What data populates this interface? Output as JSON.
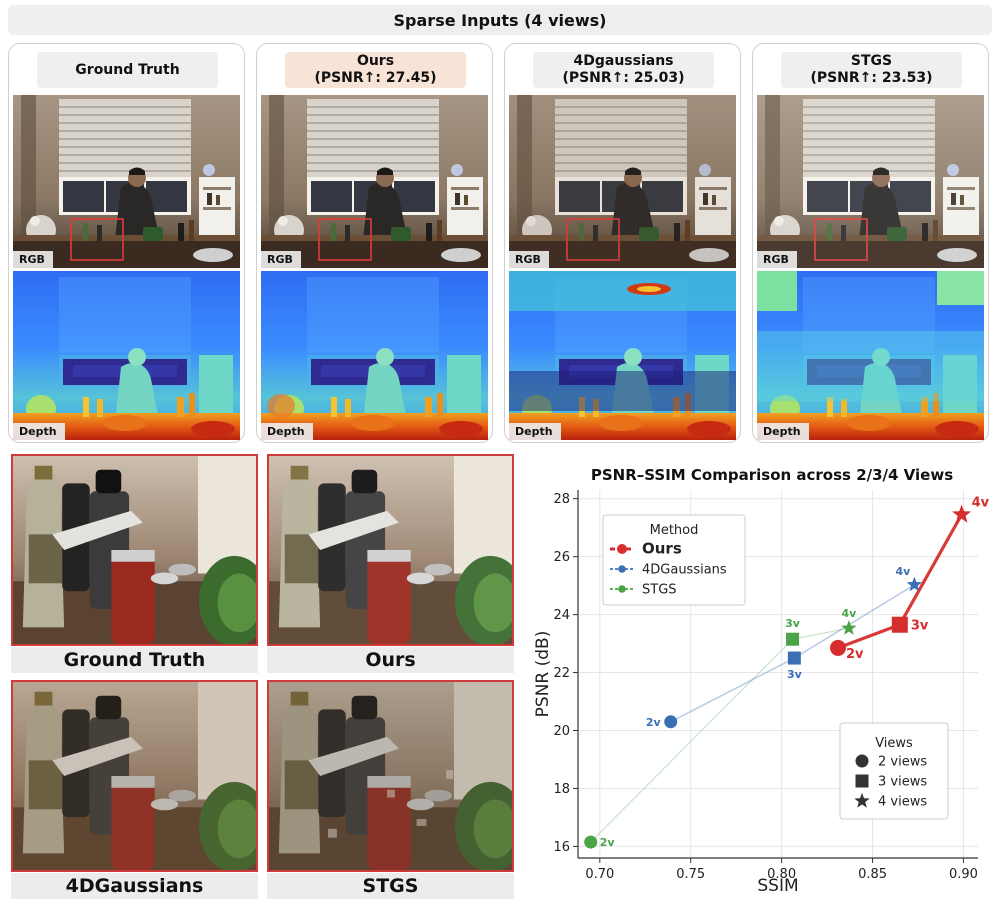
{
  "banner": "Sparse Inputs (4 views)",
  "cards": [
    {
      "name_line": "Ground Truth",
      "psnr_line": ""
    },
    {
      "name_line": "Ours",
      "psnr_line": "(PSNR↑:  27.45)"
    },
    {
      "name_line": "4Dgaussians",
      "psnr_line": "(PSNR↑:  25.03)"
    },
    {
      "name_line": "STGS",
      "psnr_line": "(PSNR↑:  23.53)"
    }
  ],
  "panel_tags": {
    "rgb": "RGB",
    "depth": "Depth"
  },
  "crop_labels": [
    "Ground Truth",
    "Ours",
    "4DGaussians",
    "STGS"
  ],
  "colors": {
    "ours": "#d62e2e",
    "fourdgaussians": "#3b6fb6",
    "stgs": "#4aa347",
    "crop_border": "#cf3b3b",
    "ours_header": "#f7e4d6"
  },
  "chart_data": {
    "type": "scatter",
    "title": "PSNR–SSIM Comparison across 2/3/4 Views",
    "xlabel": "SSIM",
    "ylabel": "PSNR (dB)",
    "xlim": [
      0.688,
      0.908
    ],
    "ylim": [
      15.6,
      28.3
    ],
    "xticks": [
      "0.70",
      "0.75",
      "0.80",
      "0.85",
      "0.90"
    ],
    "yticks": [
      "16",
      "18",
      "20",
      "22",
      "24",
      "26",
      "28"
    ],
    "grid": true,
    "legend_method": {
      "title": "Method",
      "placement": "top-left",
      "entries": [
        "Ours",
        "4DGaussians",
        "STGS"
      ]
    },
    "legend_views": {
      "title": "Views",
      "placement": "bottom-right",
      "entries": [
        "2 views",
        "3 views",
        "4 views"
      ]
    },
    "series": [
      {
        "name": "Ours",
        "color": "#d62e2e",
        "points": [
          {
            "x": 0.831,
            "y": 22.85,
            "marker": "circle",
            "label": "2v"
          },
          {
            "x": 0.865,
            "y": 23.65,
            "marker": "square",
            "label": "3v"
          },
          {
            "x": 0.899,
            "y": 27.45,
            "marker": "star",
            "label": "4v"
          }
        ]
      },
      {
        "name": "4DGaussians",
        "color": "#3b6fb6",
        "points": [
          {
            "x": 0.739,
            "y": 20.3,
            "marker": "circle",
            "label": "2v"
          },
          {
            "x": 0.807,
            "y": 22.5,
            "marker": "square",
            "label": "3v"
          },
          {
            "x": 0.873,
            "y": 25.03,
            "marker": "star",
            "label": "4v"
          }
        ]
      },
      {
        "name": "STGS",
        "color": "#4aa347",
        "points": [
          {
            "x": 0.695,
            "y": 16.15,
            "marker": "circle",
            "label": "2v"
          },
          {
            "x": 0.806,
            "y": 23.15,
            "marker": "square",
            "label": "3v"
          },
          {
            "x": 0.837,
            "y": 23.53,
            "marker": "star",
            "label": "4v"
          }
        ]
      }
    ]
  }
}
